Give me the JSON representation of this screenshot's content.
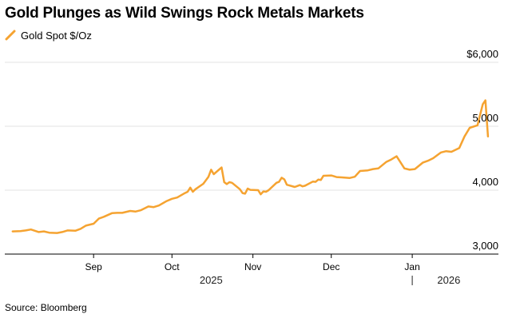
{
  "title": "Gold Plunges as Wild Swings Rock Metals Markets",
  "legend": {
    "label": "Gold Spot $/Oz"
  },
  "source": "Source: Bloomberg",
  "colors": {
    "series": "#f5a331",
    "grid": "#e3e3e3",
    "axis": "#000000"
  },
  "chart_data": {
    "type": "line",
    "title": "Gold Plunges as Wild Swings Rock Metals Markets",
    "grid": true,
    "legend_placement": "top-left",
    "y_axis_side": "right",
    "ylim": [
      3000,
      6000
    ],
    "xlim": [
      "2025-07-29",
      "2026-02-03"
    ],
    "y_ticks": [
      {
        "value": 6000,
        "label": "$6,000"
      },
      {
        "value": 5000,
        "label": "5,000"
      },
      {
        "value": 4000,
        "label": "4,000"
      },
      {
        "value": 3000,
        "label": "3,000"
      }
    ],
    "x_ticks": [
      {
        "date": "2025-09-01",
        "label": "Sep"
      },
      {
        "date": "2025-10-01",
        "label": "Oct"
      },
      {
        "date": "2025-11-01",
        "label": "Nov"
      },
      {
        "date": "2025-12-01",
        "label": "Dec"
      },
      {
        "date": "2026-01-01",
        "label": "Jan"
      }
    ],
    "year_labels": [
      {
        "label": "2025",
        "date": "2025-10-16"
      },
      {
        "label": "2026",
        "date": "2026-01-15"
      }
    ],
    "year_separator": "2026-01-01",
    "series": [
      {
        "name": "Gold Spot $/Oz",
        "points": [
          [
            "2025-08-01",
            3355
          ],
          [
            "2025-08-04",
            3360
          ],
          [
            "2025-08-06",
            3370
          ],
          [
            "2025-08-08",
            3385
          ],
          [
            "2025-08-11",
            3345
          ],
          [
            "2025-08-13",
            3355
          ],
          [
            "2025-08-15",
            3335
          ],
          [
            "2025-08-18",
            3330
          ],
          [
            "2025-08-20",
            3345
          ],
          [
            "2025-08-22",
            3370
          ],
          [
            "2025-08-25",
            3365
          ],
          [
            "2025-08-27",
            3395
          ],
          [
            "2025-08-29",
            3445
          ],
          [
            "2025-09-01",
            3475
          ],
          [
            "2025-09-03",
            3555
          ],
          [
            "2025-09-05",
            3585
          ],
          [
            "2025-09-08",
            3640
          ],
          [
            "2025-09-10",
            3645
          ],
          [
            "2025-09-12",
            3645
          ],
          [
            "2025-09-15",
            3675
          ],
          [
            "2025-09-17",
            3665
          ],
          [
            "2025-09-19",
            3685
          ],
          [
            "2025-09-22",
            3745
          ],
          [
            "2025-09-24",
            3735
          ],
          [
            "2025-09-26",
            3760
          ],
          [
            "2025-09-29",
            3830
          ],
          [
            "2025-10-01",
            3865
          ],
          [
            "2025-10-03",
            3885
          ],
          [
            "2025-10-06",
            3955
          ],
          [
            "2025-10-07",
            3975
          ],
          [
            "2025-10-08",
            4040
          ],
          [
            "2025-10-09",
            3975
          ],
          [
            "2025-10-10",
            4015
          ],
          [
            "2025-10-13",
            4100
          ],
          [
            "2025-10-15",
            4210
          ],
          [
            "2025-10-16",
            4320
          ],
          [
            "2025-10-17",
            4250
          ],
          [
            "2025-10-20",
            4355
          ],
          [
            "2025-10-21",
            4125
          ],
          [
            "2025-10-22",
            4095
          ],
          [
            "2025-10-23",
            4125
          ],
          [
            "2025-10-24",
            4115
          ],
          [
            "2025-10-27",
            4015
          ],
          [
            "2025-10-28",
            3955
          ],
          [
            "2025-10-29",
            3945
          ],
          [
            "2025-10-30",
            4025
          ],
          [
            "2025-10-31",
            4005
          ],
          [
            "2025-11-03",
            4000
          ],
          [
            "2025-11-04",
            3935
          ],
          [
            "2025-11-05",
            3980
          ],
          [
            "2025-11-06",
            3975
          ],
          [
            "2025-11-07",
            4000
          ],
          [
            "2025-11-10",
            4115
          ],
          [
            "2025-11-11",
            4130
          ],
          [
            "2025-11-12",
            4195
          ],
          [
            "2025-11-13",
            4170
          ],
          [
            "2025-11-14",
            4085
          ],
          [
            "2025-11-17",
            4050
          ],
          [
            "2025-11-18",
            4065
          ],
          [
            "2025-11-19",
            4080
          ],
          [
            "2025-11-20",
            4060
          ],
          [
            "2025-11-21",
            4070
          ],
          [
            "2025-11-24",
            4135
          ],
          [
            "2025-11-25",
            4130
          ],
          [
            "2025-11-26",
            4165
          ],
          [
            "2025-11-27",
            4160
          ],
          [
            "2025-11-28",
            4225
          ],
          [
            "2025-12-01",
            4230
          ],
          [
            "2025-12-03",
            4205
          ],
          [
            "2025-12-05",
            4200
          ],
          [
            "2025-12-08",
            4190
          ],
          [
            "2025-12-10",
            4210
          ],
          [
            "2025-12-12",
            4300
          ],
          [
            "2025-12-15",
            4310
          ],
          [
            "2025-12-17",
            4330
          ],
          [
            "2025-12-19",
            4340
          ],
          [
            "2025-12-22",
            4440
          ],
          [
            "2025-12-24",
            4480
          ],
          [
            "2025-12-26",
            4530
          ],
          [
            "2025-12-29",
            4340
          ],
          [
            "2025-12-31",
            4320
          ],
          [
            "2026-01-02",
            4330
          ],
          [
            "2026-01-05",
            4430
          ],
          [
            "2026-01-07",
            4460
          ],
          [
            "2026-01-09",
            4500
          ],
          [
            "2026-01-12",
            4590
          ],
          [
            "2026-01-14",
            4610
          ],
          [
            "2026-01-16",
            4600
          ],
          [
            "2026-01-19",
            4660
          ],
          [
            "2026-01-21",
            4840
          ],
          [
            "2026-01-23",
            4975
          ],
          [
            "2026-01-26",
            5015
          ],
          [
            "2026-01-28",
            5345
          ],
          [
            "2026-01-29",
            5405
          ],
          [
            "2026-01-30",
            4840
          ]
        ]
      }
    ]
  }
}
